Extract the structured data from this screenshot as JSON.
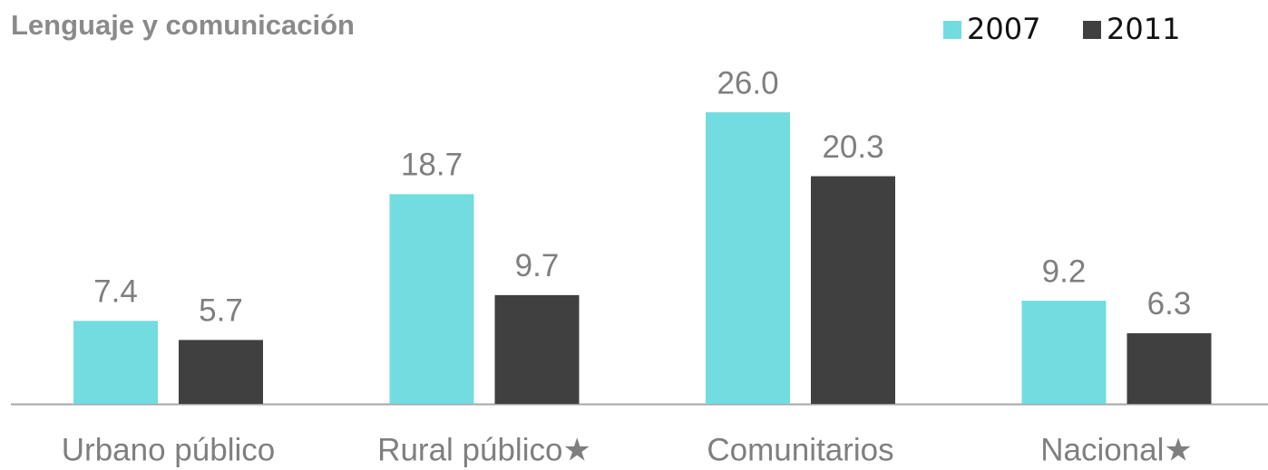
{
  "chart_data": {
    "type": "bar",
    "title": "Lenguaje y comunicación",
    "categories": [
      "Urbano público",
      "Rural público★",
      "Comunitarios",
      "Nacional★"
    ],
    "series": [
      {
        "name": "2007",
        "color": "#72dce1",
        "values": [
          7.4,
          18.7,
          26.0,
          9.2
        ],
        "value_labels": [
          "7.4",
          "18.7",
          "26.0",
          "9.2"
        ]
      },
      {
        "name": "2011",
        "color": "#404040",
        "values": [
          5.7,
          9.7,
          20.3,
          6.3
        ],
        "value_labels": [
          "5.7",
          "9.7",
          "20.3",
          "6.3"
        ]
      }
    ],
    "legend": "top-right"
  }
}
